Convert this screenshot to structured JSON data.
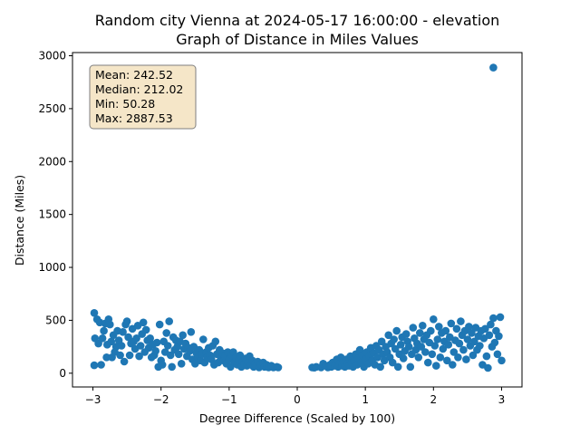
{
  "chart_data": {
    "type": "scatter",
    "title_line1": "Random city Vienna at 2024-05-17 16:00:00  - elevation",
    "title_line2": "Graph of Distance in Miles Values",
    "xlabel": "Degree Difference (Scaled by 100)",
    "ylabel": "Distance (Miles)",
    "xlim": [
      -3.3,
      3.3
    ],
    "ylim": [
      -130,
      3030
    ],
    "xticks": [
      -3,
      -2,
      -1,
      0,
      1,
      2,
      3
    ],
    "yticks": [
      0,
      500,
      1000,
      1500,
      2000,
      2500,
      3000
    ],
    "grid": false,
    "point_color": "#1f77b4",
    "stats_box": {
      "mean": "Mean: 242.52",
      "median": "Median: 212.02",
      "min": "Min: 50.28",
      "max": "Max: 2887.53",
      "background": "#f5e6c8",
      "border": "#7f7f7f"
    },
    "points": [
      [
        -2.98,
        570
      ],
      [
        -2.98,
        75
      ],
      [
        -2.97,
        330
      ],
      [
        -2.94,
        510
      ],
      [
        -2.92,
        280
      ],
      [
        -2.9,
        480
      ],
      [
        -2.88,
        80
      ],
      [
        -2.86,
        330
      ],
      [
        -2.84,
        400
      ],
      [
        -2.82,
        470
      ],
      [
        -2.8,
        150
      ],
      [
        -2.79,
        270
      ],
      [
        -2.77,
        510
      ],
      [
        -2.75,
        460
      ],
      [
        -2.73,
        300
      ],
      [
        -2.72,
        150
      ],
      [
        -2.7,
        360
      ],
      [
        -2.68,
        200
      ],
      [
        -2.66,
        250
      ],
      [
        -2.64,
        400
      ],
      [
        -2.62,
        310
      ],
      [
        -2.6,
        170
      ],
      [
        -2.58,
        260
      ],
      [
        -2.56,
        390
      ],
      [
        -2.54,
        110
      ],
      [
        -2.52,
        460
      ],
      [
        -2.5,
        490
      ],
      [
        -2.48,
        340
      ],
      [
        -2.46,
        170
      ],
      [
        -2.44,
        280
      ],
      [
        -2.42,
        420
      ],
      [
        -2.4,
        300
      ],
      [
        -2.38,
        230
      ],
      [
        -2.36,
        330
      ],
      [
        -2.34,
        450
      ],
      [
        -2.32,
        160
      ],
      [
        -2.3,
        260
      ],
      [
        -2.28,
        370
      ],
      [
        -2.26,
        480
      ],
      [
        -2.24,
        200
      ],
      [
        -2.22,
        410
      ],
      [
        -2.2,
        310
      ],
      [
        -2.18,
        240
      ],
      [
        -2.16,
        330
      ],
      [
        -2.14,
        150
      ],
      [
        -2.12,
        270
      ],
      [
        -2.1,
        170
      ],
      [
        -2.08,
        210
      ],
      [
        -2.06,
        290
      ],
      [
        -2.04,
        60
      ],
      [
        -2.02,
        460
      ],
      [
        -2.0,
        120
      ],
      [
        -1.98,
        80
      ],
      [
        -1.96,
        300
      ],
      [
        -1.94,
        200
      ],
      [
        -1.92,
        380
      ],
      [
        -1.9,
        260
      ],
      [
        -1.88,
        490
      ],
      [
        -1.86,
        170
      ],
      [
        -1.84,
        60
      ],
      [
        -1.82,
        340
      ],
      [
        -1.8,
        220
      ],
      [
        -1.78,
        310
      ],
      [
        -1.76,
        250
      ],
      [
        -1.74,
        180
      ],
      [
        -1.72,
        300
      ],
      [
        -1.7,
        90
      ],
      [
        -1.68,
        360
      ],
      [
        -1.66,
        230
      ],
      [
        -1.64,
        280
      ],
      [
        -1.62,
        160
      ],
      [
        -1.6,
        240
      ],
      [
        -1.58,
        210
      ],
      [
        -1.56,
        390
      ],
      [
        -1.54,
        130
      ],
      [
        -1.52,
        250
      ],
      [
        -1.5,
        90
      ],
      [
        -1.48,
        190
      ],
      [
        -1.46,
        150
      ],
      [
        -1.44,
        220
      ],
      [
        -1.42,
        120
      ],
      [
        -1.4,
        180
      ],
      [
        -1.38,
        320
      ],
      [
        -1.36,
        100
      ],
      [
        -1.34,
        200
      ],
      [
        -1.32,
        150
      ],
      [
        -1.3,
        240
      ],
      [
        -1.28,
        170
      ],
      [
        -1.26,
        130
      ],
      [
        -1.24,
        260
      ],
      [
        -1.22,
        80
      ],
      [
        -1.2,
        300
      ],
      [
        -1.18,
        180
      ],
      [
        -1.16,
        100
      ],
      [
        -1.14,
        220
      ],
      [
        -1.12,
        140
      ],
      [
        -1.1,
        190
      ],
      [
        -1.08,
        120
      ],
      [
        -1.06,
        160
      ],
      [
        -1.04,
        90
      ],
      [
        -1.02,
        200
      ],
      [
        -1.0,
        130
      ],
      [
        -0.98,
        60
      ],
      [
        -0.96,
        170
      ],
      [
        -0.94,
        200
      ],
      [
        -0.92,
        100
      ],
      [
        -0.9,
        150
      ],
      [
        -0.88,
        80
      ],
      [
        -0.86,
        120
      ],
      [
        -0.84,
        170
      ],
      [
        -0.82,
        60
      ],
      [
        -0.8,
        110
      ],
      [
        -0.78,
        90
      ],
      [
        -0.76,
        140
      ],
      [
        -0.74,
        70
      ],
      [
        -0.72,
        100
      ],
      [
        -0.7,
        160
      ],
      [
        -0.68,
        80
      ],
      [
        -0.66,
        120
      ],
      [
        -0.64,
        60
      ],
      [
        -0.62,
        90
      ],
      [
        -0.6,
        70
      ],
      [
        -0.58,
        110
      ],
      [
        -0.56,
        55
      ],
      [
        -0.54,
        85
      ],
      [
        -0.5,
        100
      ],
      [
        -0.48,
        60
      ],
      [
        -0.45,
        80
      ],
      [
        -0.42,
        55
      ],
      [
        -0.38,
        70
      ],
      [
        -0.35,
        55
      ],
      [
        -0.3,
        60
      ],
      [
        -0.28,
        55
      ],
      [
        0.22,
        55
      ],
      [
        0.25,
        52
      ],
      [
        0.28,
        60
      ],
      [
        0.35,
        55
      ],
      [
        0.38,
        90
      ],
      [
        0.42,
        70
      ],
      [
        0.45,
        55
      ],
      [
        0.48,
        80
      ],
      [
        0.5,
        60
      ],
      [
        0.52,
        100
      ],
      [
        0.55,
        70
      ],
      [
        0.58,
        130
      ],
      [
        0.6,
        60
      ],
      [
        0.62,
        90
      ],
      [
        0.64,
        150
      ],
      [
        0.66,
        70
      ],
      [
        0.68,
        110
      ],
      [
        0.7,
        60
      ],
      [
        0.72,
        130
      ],
      [
        0.74,
        90
      ],
      [
        0.76,
        70
      ],
      [
        0.78,
        160
      ],
      [
        0.8,
        100
      ],
      [
        0.82,
        60
      ],
      [
        0.84,
        120
      ],
      [
        0.86,
        180
      ],
      [
        0.88,
        80
      ],
      [
        0.9,
        140
      ],
      [
        0.92,
        220
      ],
      [
        0.94,
        100
      ],
      [
        0.96,
        170
      ],
      [
        0.98,
        60
      ],
      [
        1.0,
        130
      ],
      [
        1.02,
        200
      ],
      [
        1.04,
        90
      ],
      [
        1.06,
        160
      ],
      [
        1.08,
        240
      ],
      [
        1.1,
        120
      ],
      [
        1.12,
        190
      ],
      [
        1.14,
        80
      ],
      [
        1.16,
        260
      ],
      [
        1.18,
        150
      ],
      [
        1.2,
        220
      ],
      [
        1.22,
        60
      ],
      [
        1.24,
        300
      ],
      [
        1.26,
        180
      ],
      [
        1.28,
        120
      ],
      [
        1.3,
        250
      ],
      [
        1.32,
        200
      ],
      [
        1.34,
        360
      ],
      [
        1.36,
        150
      ],
      [
        1.38,
        280
      ],
      [
        1.4,
        100
      ],
      [
        1.42,
        320
      ],
      [
        1.44,
        230
      ],
      [
        1.46,
        400
      ],
      [
        1.48,
        60
      ],
      [
        1.5,
        180
      ],
      [
        1.52,
        270
      ],
      [
        1.54,
        340
      ],
      [
        1.56,
        140
      ],
      [
        1.58,
        210
      ],
      [
        1.6,
        370
      ],
      [
        1.62,
        300
      ],
      [
        1.64,
        250
      ],
      [
        1.66,
        60
      ],
      [
        1.68,
        180
      ],
      [
        1.7,
        430
      ],
      [
        1.72,
        330
      ],
      [
        1.74,
        220
      ],
      [
        1.76,
        280
      ],
      [
        1.78,
        150
      ],
      [
        1.8,
        380
      ],
      [
        1.82,
        250
      ],
      [
        1.84,
        450
      ],
      [
        1.86,
        320
      ],
      [
        1.88,
        200
      ],
      [
        1.9,
        360
      ],
      [
        1.92,
        100
      ],
      [
        1.94,
        290
      ],
      [
        1.96,
        400
      ],
      [
        1.98,
        180
      ],
      [
        2.0,
        510
      ],
      [
        2.02,
        260
      ],
      [
        2.04,
        70
      ],
      [
        2.06,
        320
      ],
      [
        2.08,
        440
      ],
      [
        2.1,
        150
      ],
      [
        2.12,
        380
      ],
      [
        2.14,
        230
      ],
      [
        2.16,
        300
      ],
      [
        2.18,
        400
      ],
      [
        2.2,
        120
      ],
      [
        2.22,
        270
      ],
      [
        2.24,
        340
      ],
      [
        2.26,
        470
      ],
      [
        2.28,
        80
      ],
      [
        2.3,
        200
      ],
      [
        2.32,
        310
      ],
      [
        2.34,
        420
      ],
      [
        2.36,
        150
      ],
      [
        2.38,
        280
      ],
      [
        2.4,
        490
      ],
      [
        2.42,
        360
      ],
      [
        2.44,
        220
      ],
      [
        2.46,
        400
      ],
      [
        2.48,
        130
      ],
      [
        2.5,
        320
      ],
      [
        2.52,
        440
      ],
      [
        2.54,
        260
      ],
      [
        2.56,
        380
      ],
      [
        2.58,
        170
      ],
      [
        2.6,
        300
      ],
      [
        2.62,
        430
      ],
      [
        2.64,
        220
      ],
      [
        2.66,
        350
      ],
      [
        2.68,
        260
      ],
      [
        2.7,
        400
      ],
      [
        2.72,
        80
      ],
      [
        2.74,
        330
      ],
      [
        2.76,
        420
      ],
      [
        2.78,
        160
      ],
      [
        2.8,
        50
      ],
      [
        2.82,
        360
      ],
      [
        2.84,
        460
      ],
      [
        2.86,
        250
      ],
      [
        2.88,
        520
      ],
      [
        2.9,
        290
      ],
      [
        2.92,
        400
      ],
      [
        2.94,
        180
      ],
      [
        2.96,
        350
      ],
      [
        2.98,
        530
      ],
      [
        3.0,
        120
      ],
      [
        2.88,
        2887.53
      ]
    ]
  }
}
